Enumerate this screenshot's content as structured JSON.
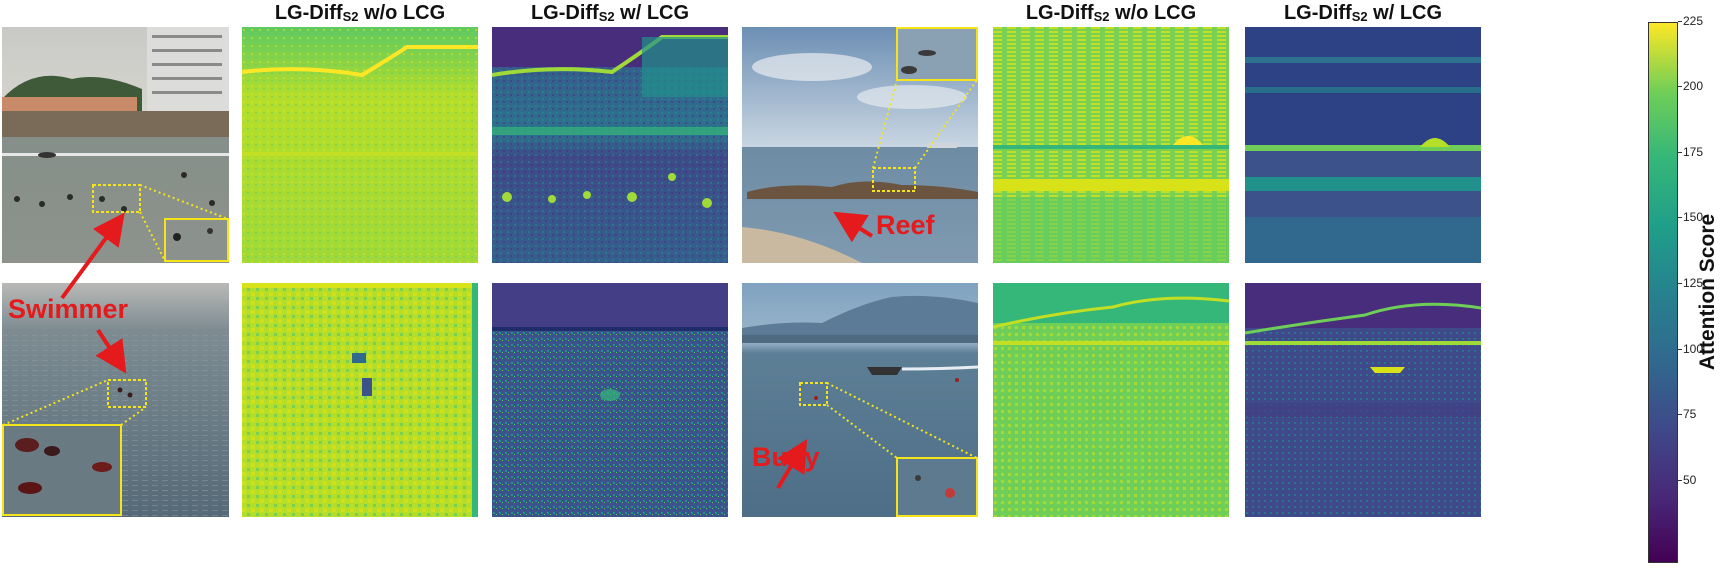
{
  "headers": {
    "wo_prefix": "LG-Diff",
    "wo_sub": "S2",
    "wo_suffix": " w/o LCG",
    "w_prefix": "LG-Diff",
    "w_sub": "S2",
    "w_suffix": " w/ LCG"
  },
  "labels": {
    "swimmer": "Swimmer",
    "reef": "Reef",
    "buoy": "Buoy"
  },
  "colorbar": {
    "title": "Attention Score",
    "ticks": [
      "225",
      "200",
      "175",
      "150",
      "125",
      "100",
      "75",
      "50"
    ],
    "colormap": "viridis"
  },
  "colors": {
    "annotation": "#e41a1c",
    "zoom_box": "#f5e41a",
    "heat_high": "#fde725",
    "heat_low": "#440154"
  }
}
